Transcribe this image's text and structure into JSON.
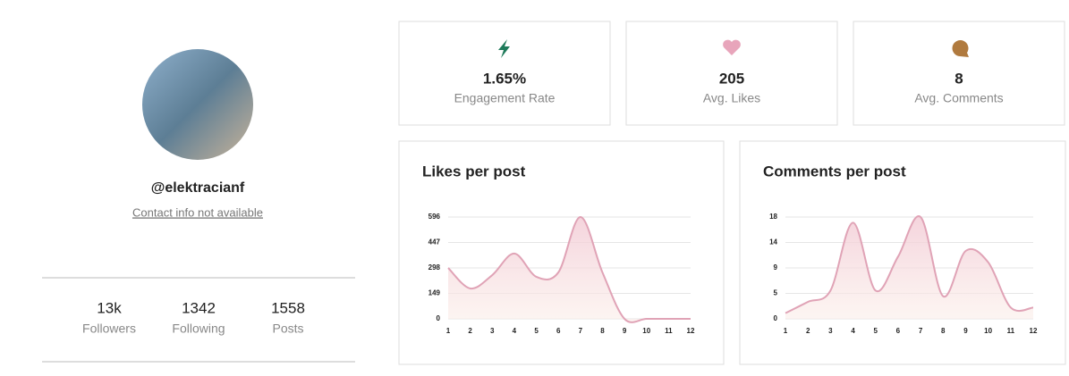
{
  "profile": {
    "handle": "@elektracianf",
    "contact": "Contact info not available",
    "counts": [
      {
        "value": "13k",
        "label": "Followers"
      },
      {
        "value": "1342",
        "label": "Following"
      },
      {
        "value": "1558",
        "label": "Posts"
      }
    ]
  },
  "stats": [
    {
      "value": "1.65%",
      "label": "Engagement Rate"
    },
    {
      "value": "205",
      "label": "Avg. Likes"
    },
    {
      "value": "8",
      "label": "Avg. Comments"
    }
  ],
  "chart_data": [
    {
      "type": "line",
      "title": "Likes per post",
      "color": "#e0a3b6",
      "x": [
        1,
        2,
        3,
        4,
        5,
        6,
        7,
        8,
        9,
        10,
        11,
        12
      ],
      "values": [
        298,
        178,
        256,
        382,
        246,
        272,
        596,
        272,
        0,
        0,
        0,
        0
      ],
      "xlim": [
        1,
        12
      ],
      "xticks": [
        1,
        2,
        3,
        4,
        5,
        6,
        7,
        8,
        9,
        10,
        11,
        12
      ],
      "ylim": [
        0,
        596
      ],
      "yticks": [
        0,
        149,
        298,
        447,
        596
      ],
      "grid": true
    },
    {
      "type": "line",
      "title": "Comments per post",
      "color": "#e0a3b6",
      "x": [
        1,
        2,
        3,
        4,
        5,
        6,
        7,
        8,
        9,
        10,
        11,
        12
      ],
      "values": [
        1,
        3,
        5,
        17,
        5,
        11,
        18,
        4,
        12,
        10,
        2,
        2
      ],
      "xlim": [
        1,
        12
      ],
      "xticks": [
        1,
        2,
        3,
        4,
        5,
        6,
        7,
        8,
        9,
        10,
        11,
        12
      ],
      "ylim": [
        0,
        18
      ],
      "yticks": [
        0,
        {
          "value": 4.5,
          "label": "5"
        },
        9,
        {
          "value": 13.5,
          "label": "14"
        },
        18
      ],
      "grid": true
    }
  ]
}
